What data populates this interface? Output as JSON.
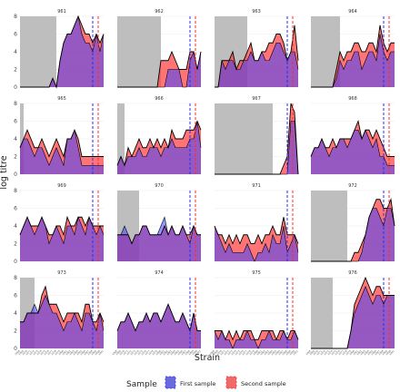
{
  "chart_data": {
    "type": "area",
    "facet_labels": [
      "961",
      "962",
      "963",
      "964",
      "965",
      "966",
      "967",
      "968",
      "969",
      "970",
      "971",
      "972",
      "973",
      "974",
      "975",
      "976"
    ],
    "xlabel": "Strain",
    "ylabel": "log titre",
    "y_ticks": [
      "0",
      "2",
      "4",
      "6",
      "8"
    ],
    "ylim": [
      0,
      8
    ],
    "x_tick_labels": [
      "1968",
      "1969",
      "1970",
      "1971",
      "1972",
      "1973",
      "1974",
      "1975",
      "1976",
      "1977",
      "1978",
      "1979",
      "1980",
      "1981",
      "1982",
      "1983",
      "1984",
      "1985",
      "1986",
      "1987",
      "1988",
      "1989",
      "1990",
      "1991"
    ],
    "grid": true,
    "legend": {
      "title": "Sample",
      "position": "bottom",
      "entries": [
        {
          "label": "First sample",
          "color": "#3333ff"
        },
        {
          "label": "Second sample",
          "color": "#ff3333"
        }
      ]
    },
    "colors": {
      "first_fill": "#4040ff",
      "second_fill": "#ff4040",
      "overlap": "#a0307a",
      "shade": "#bebebe"
    },
    "panels": [
      {
        "id": "961",
        "shade_end": 10,
        "first_line": 20,
        "second_line": 21,
        "first": [
          0,
          0,
          0,
          0,
          0,
          0,
          0,
          0,
          0,
          1,
          0,
          3,
          5,
          6,
          6,
          7,
          8,
          6,
          5,
          5,
          4,
          6,
          4,
          6
        ],
        "second": [
          0,
          0,
          0,
          0,
          0,
          0,
          0,
          0,
          0,
          1,
          0,
          3,
          5,
          6,
          6,
          7,
          8,
          7,
          6,
          6,
          5,
          6,
          5,
          6
        ]
      },
      {
        "id": "962",
        "shade_end": 12,
        "first_line": 20,
        "second_line": 21,
        "first": [
          0,
          0,
          0,
          0,
          0,
          0,
          0,
          0,
          0,
          0,
          0,
          0,
          0,
          0,
          2,
          2,
          2,
          2,
          0,
          0,
          3,
          4,
          2,
          4
        ],
        "second": [
          0,
          0,
          0,
          0,
          0,
          0,
          0,
          0,
          0,
          0,
          0,
          0,
          3,
          3,
          3,
          4,
          3,
          2,
          2,
          2,
          4,
          4,
          2,
          4
        ]
      },
      {
        "id": "963",
        "shade_end": 9,
        "first_line": 20,
        "second_line": 21,
        "first": [
          0,
          0,
          3,
          2,
          3,
          3,
          2,
          2,
          3,
          3,
          4,
          3,
          3,
          4,
          3,
          3,
          4,
          5,
          5,
          4,
          3,
          4,
          4,
          2
        ],
        "second": [
          0,
          0,
          3,
          3,
          3,
          4,
          2,
          3,
          3,
          4,
          5,
          3,
          3,
          4,
          4,
          5,
          5,
          6,
          6,
          5,
          3,
          4,
          7,
          3
        ]
      },
      {
        "id": "964",
        "shade_end": 8,
        "first_line": 20,
        "second_line": 21,
        "first": [
          0,
          0,
          0,
          0,
          0,
          0,
          0,
          1,
          3,
          2,
          3,
          3,
          4,
          4,
          2,
          3,
          4,
          4,
          3,
          6,
          4,
          3,
          4,
          4
        ],
        "second": [
          0,
          0,
          0,
          0,
          0,
          0,
          0,
          2,
          4,
          3,
          4,
          4,
          5,
          5,
          4,
          4,
          5,
          5,
          4,
          7,
          5,
          4,
          5,
          5
        ]
      },
      {
        "id": "965",
        "shade_end": 1,
        "first_line": 20,
        "second_line": 21,
        "first": [
          3,
          4,
          4,
          3,
          2,
          3,
          3,
          2,
          1,
          2,
          3,
          2,
          1,
          4,
          4,
          5,
          3,
          1,
          1,
          1,
          1,
          1,
          1,
          1
        ],
        "second": [
          3,
          4,
          5,
          4,
          3,
          3,
          4,
          3,
          2,
          3,
          4,
          3,
          2,
          4,
          4,
          5,
          4,
          2,
          2,
          2,
          2,
          2,
          2,
          2
        ]
      },
      {
        "id": "966",
        "shade_end": 2,
        "first_line": 20,
        "second_line": 21,
        "first": [
          1,
          2,
          1,
          2,
          2,
          2,
          3,
          2,
          2,
          3,
          3,
          3,
          2,
          3,
          3,
          4,
          3,
          3,
          3,
          3,
          4,
          4,
          6,
          3
        ],
        "second": [
          1,
          2,
          1,
          3,
          2,
          3,
          4,
          3,
          3,
          4,
          3,
          4,
          3,
          4,
          3,
          5,
          4,
          4,
          4,
          5,
          5,
          5,
          6,
          5
        ]
      },
      {
        "id": "967",
        "shade_end": 16,
        "first_line": 20,
        "second_line": 21,
        "first": [
          0,
          0,
          0,
          0,
          0,
          0,
          0,
          0,
          0,
          0,
          0,
          0,
          0,
          0,
          0,
          0,
          0,
          0,
          0,
          0,
          0,
          6,
          6,
          0
        ],
        "second": [
          0,
          0,
          0,
          0,
          0,
          0,
          0,
          0,
          0,
          0,
          0,
          0,
          0,
          0,
          0,
          0,
          0,
          0,
          0,
          1,
          2,
          8,
          7,
          0
        ]
      },
      {
        "id": "968",
        "shade_end": 0,
        "first_line": 20,
        "second_line": 21,
        "first": [
          2,
          3,
          3,
          4,
          3,
          2,
          3,
          3,
          4,
          4,
          3,
          4,
          5,
          5,
          4,
          5,
          4,
          3,
          4,
          2,
          2,
          1,
          1,
          1
        ],
        "second": [
          2,
          3,
          3,
          4,
          3,
          3,
          4,
          3,
          4,
          4,
          4,
          4,
          5,
          6,
          4,
          5,
          5,
          4,
          5,
          4,
          3,
          2,
          2,
          2
        ]
      },
      {
        "id": "969",
        "shade_end": 0,
        "first_line": 20,
        "second_line": 21,
        "first": [
          3,
          4,
          5,
          4,
          3,
          4,
          5,
          4,
          2,
          3,
          4,
          3,
          2,
          4,
          4,
          3,
          5,
          4,
          3,
          5,
          4,
          3,
          4,
          3
        ],
        "second": [
          3,
          4,
          5,
          4,
          4,
          4,
          5,
          4,
          3,
          3,
          4,
          4,
          3,
          5,
          4,
          4,
          5,
          5,
          4,
          5,
          4,
          4,
          4,
          4
        ]
      },
      {
        "id": "970",
        "shade_end": 6,
        "first_line": 20,
        "second_line": 21,
        "first": [
          3,
          3,
          4,
          3,
          2,
          3,
          3,
          4,
          4,
          3,
          3,
          3,
          4,
          5,
          3,
          4,
          3,
          3,
          4,
          3,
          2,
          4,
          3,
          3
        ],
        "second": [
          3,
          3,
          3,
          3,
          2,
          3,
          3,
          4,
          4,
          3,
          3,
          3,
          3,
          4,
          3,
          4,
          3,
          3,
          4,
          3,
          3,
          4,
          3,
          3
        ]
      },
      {
        "id": "971",
        "shade_end": 0,
        "first_line": 20,
        "second_line": 21,
        "first": [
          4,
          3,
          2,
          1,
          2,
          1,
          1,
          1,
          1,
          2,
          1,
          0,
          1,
          1,
          2,
          1,
          3,
          2,
          2,
          4,
          1,
          2,
          3,
          1
        ],
        "second": [
          4,
          3,
          3,
          2,
          3,
          2,
          3,
          2,
          3,
          3,
          2,
          2,
          3,
          2,
          3,
          3,
          4,
          3,
          3,
          5,
          3,
          3,
          3,
          2
        ]
      },
      {
        "id": "972",
        "shade_end": 10,
        "first_line": 20,
        "second_line": 21,
        "first": [
          0,
          0,
          0,
          0,
          0,
          0,
          0,
          0,
          0,
          0,
          0,
          0,
          0,
          0,
          1,
          3,
          5,
          6,
          6,
          5,
          4,
          6,
          6,
          4
        ],
        "second": [
          0,
          0,
          0,
          0,
          0,
          0,
          0,
          0,
          0,
          0,
          0,
          0,
          1,
          1,
          2,
          3,
          5,
          6,
          7,
          7,
          6,
          6,
          7,
          4
        ]
      },
      {
        "id": "973",
        "shade_end": 4,
        "first_line": 20,
        "second_line": 21,
        "first": [
          3,
          3,
          4,
          4,
          5,
          4,
          5,
          6,
          5,
          4,
          4,
          3,
          2,
          3,
          3,
          4,
          3,
          2,
          4,
          4,
          3,
          2,
          4,
          2
        ],
        "second": [
          3,
          3,
          4,
          4,
          4,
          4,
          6,
          7,
          5,
          5,
          5,
          4,
          3,
          4,
          4,
          4,
          4,
          3,
          5,
          5,
          3,
          3,
          4,
          3
        ]
      },
      {
        "id": "974",
        "shade_end": 0,
        "first_line": 20,
        "second_line": 21,
        "first": [
          2,
          3,
          3,
          4,
          3,
          2,
          3,
          3,
          4,
          3,
          4,
          4,
          3,
          4,
          5,
          4,
          3,
          3,
          4,
          3,
          2,
          4,
          2,
          2
        ],
        "second": [
          2,
          3,
          3,
          4,
          3,
          2,
          3,
          3,
          4,
          3,
          4,
          4,
          3,
          4,
          5,
          4,
          3,
          3,
          4,
          3,
          2,
          4,
          2,
          2
        ]
      },
      {
        "id": "975",
        "shade_end": 0,
        "first_line": 20,
        "second_line": 21,
        "first": [
          2,
          1,
          2,
          1,
          1,
          0,
          1,
          1,
          1,
          2,
          1,
          1,
          0,
          1,
          1,
          2,
          1,
          1,
          1,
          2,
          1,
          1,
          2,
          1
        ],
        "second": [
          2,
          2,
          2,
          1,
          2,
          1,
          2,
          1,
          2,
          2,
          2,
          1,
          1,
          2,
          2,
          2,
          2,
          1,
          2,
          2,
          1,
          2,
          2,
          1
        ]
      },
      {
        "id": "976",
        "shade_end": 6,
        "first_line": 20,
        "second_line": 21,
        "first": [
          0,
          0,
          0,
          0,
          0,
          0,
          0,
          0,
          0,
          0,
          0,
          2,
          4,
          5,
          6,
          7,
          6,
          5,
          6,
          6,
          5,
          6,
          6,
          6
        ],
        "second": [
          0,
          0,
          0,
          0,
          0,
          0,
          0,
          0,
          0,
          0,
          0,
          2,
          5,
          6,
          7,
          8,
          7,
          6,
          7,
          7,
          6,
          6,
          6,
          6
        ]
      }
    ]
  }
}
